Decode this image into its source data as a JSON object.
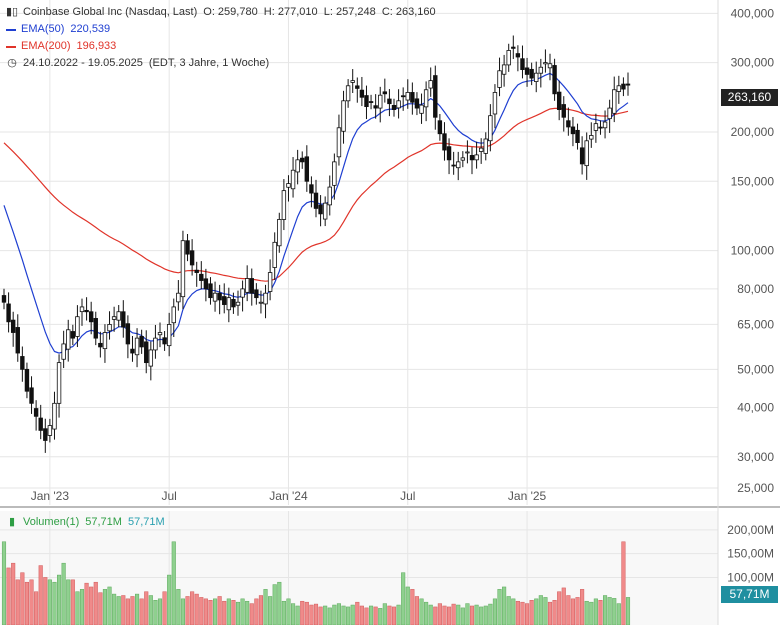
{
  "header": {
    "title": "Coinbase Global Inc (Nasdaq, Last)",
    "ohlc": "O: 259,780  H: 277,010  L: 257,248  C: 263,160",
    "ema50_label": "EMA(50)",
    "ema50_value": "220,539",
    "ema200_label": "EMA(200)",
    "ema200_value": "196,933",
    "range_text": "24.10.2022 - 19.05.2025",
    "range_detail": "(EDT, 3 Jahre, 1 Woche)"
  },
  "volume_legend": {
    "label": "Volumen(1)",
    "value1": "57,71M",
    "value2": "57,71M"
  },
  "price_tag": "263,160",
  "volume_tag": "57,71M",
  "colors": {
    "ema50": "#1f3fd1",
    "ema200": "#e0342a",
    "vol_up": "#8fd08f",
    "vol_down": "#f08a8a",
    "grid": "#e6e6e6"
  },
  "chart_data": {
    "type": "candlestick",
    "scale": "log",
    "ylim": [
      24000,
      420000
    ],
    "price_ticks": [
      "400,000",
      "300,000",
      "200,000",
      "150,000",
      "100,000",
      "80,000",
      "65,000",
      "50,000",
      "40,000",
      "30,000",
      "25,000"
    ],
    "price_tick_values": [
      400000,
      300000,
      200000,
      150000,
      100000,
      80000,
      65000,
      50000,
      40000,
      30000,
      25000
    ],
    "x_ticks": [
      "Jan '23",
      "Jul",
      "Jan '24",
      "Jul",
      "Jan '25"
    ],
    "volume_ticks": [
      "200,00M",
      "150,00M",
      "100,00M"
    ],
    "volume_tick_values": [
      200,
      150,
      100
    ],
    "volume_ylim": [
      0,
      225
    ],
    "closes": [
      74,
      66,
      62,
      55,
      50,
      44,
      41,
      38,
      35,
      33,
      36,
      41,
      52,
      58,
      63,
      60,
      68,
      72,
      70,
      66,
      60,
      57,
      62,
      65,
      68,
      70,
      64,
      58,
      55,
      60,
      57,
      52,
      56,
      60,
      62,
      58,
      65,
      72,
      78,
      106,
      98,
      92,
      88,
      84,
      80,
      76,
      78,
      75,
      73,
      76,
      72,
      74,
      80,
      85,
      78,
      76,
      74,
      78,
      88,
      105,
      120,
      142,
      148,
      160,
      170,
      168,
      150,
      140,
      128,
      124,
      132,
      145,
      168,
      205,
      240,
      262,
      270,
      258,
      245,
      232,
      238,
      230,
      248,
      250,
      236,
      228,
      240,
      246,
      252,
      238,
      230,
      234,
      256,
      270,
      218,
      198,
      180,
      170,
      164,
      168,
      172,
      178,
      170,
      175,
      182,
      192,
      220,
      252,
      286,
      296,
      322,
      326,
      310,
      288,
      280,
      274,
      282,
      292,
      300,
      298,
      250,
      228,
      218,
      206,
      198,
      188,
      166,
      190,
      196,
      210,
      205,
      212,
      230,
      256,
      262,
      257,
      263
    ],
    "volumes": [
      175,
      120,
      130,
      95,
      110,
      90,
      95,
      70,
      125,
      100,
      95,
      90,
      105,
      130,
      95,
      95,
      70,
      75,
      88,
      80,
      90,
      68,
      75,
      80,
      65,
      60,
      62,
      55,
      60,
      65,
      55,
      70,
      62,
      52,
      55,
      70,
      105,
      175,
      75,
      55,
      60,
      70,
      65,
      58,
      55,
      52,
      55,
      60,
      50,
      55,
      52,
      48,
      55,
      50,
      45,
      55,
      62,
      75,
      60,
      85,
      90,
      50,
      55,
      45,
      40,
      50,
      48,
      42,
      44,
      38,
      40,
      36,
      42,
      45,
      40,
      38,
      42,
      48,
      40,
      36,
      40,
      38,
      35,
      45,
      40,
      38,
      42,
      110,
      80,
      75,
      60,
      55,
      48,
      42,
      38,
      45,
      40,
      38,
      44,
      42,
      36,
      45,
      40,
      42,
      38,
      40,
      44,
      55,
      75,
      80,
      60,
      55,
      50,
      48,
      45,
      52,
      55,
      62,
      58,
      48,
      52,
      70,
      78,
      62,
      55,
      58,
      75,
      50,
      48,
      55,
      52,
      62,
      58,
      56,
      45,
      175,
      58
    ]
  }
}
